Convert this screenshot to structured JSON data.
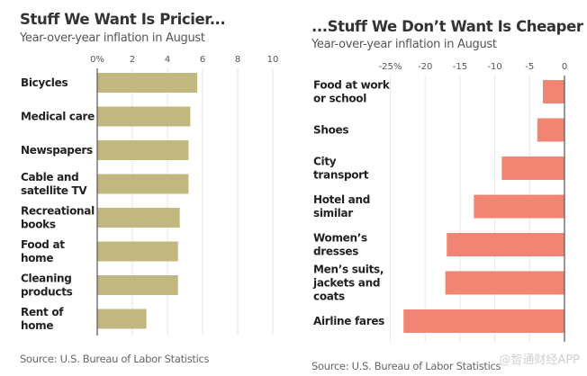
{
  "chart_data": [
    {
      "type": "bar",
      "orientation": "horizontal",
      "title": "Stuff We Want Is Pricier...",
      "subtitle": "Year-over-year inflation in August",
      "xlabel": "",
      "ylabel": "",
      "xlim": [
        0,
        10
      ],
      "ticks": [
        0,
        2,
        4,
        6,
        8,
        10
      ],
      "tick_labels": [
        "0%",
        "2",
        "4",
        "6",
        "8",
        "10"
      ],
      "grid": true,
      "color": "#c0b87f",
      "categories": [
        [
          "Bicycles"
        ],
        [
          "Medical care"
        ],
        [
          "Newspapers"
        ],
        [
          "Cable and",
          "satellite TV"
        ],
        [
          "Recreational",
          "books"
        ],
        [
          "Food at",
          "home"
        ],
        [
          "Cleaning",
          "products"
        ],
        [
          "Rent of",
          "home"
        ]
      ],
      "values": [
        5.7,
        5.3,
        5.2,
        5.2,
        4.7,
        4.6,
        4.6,
        2.8
      ],
      "source": "Source: U.S. Bureau of Labor Statistics"
    },
    {
      "type": "bar",
      "orientation": "horizontal",
      "title": "...Stuff We Don’t Want Is Cheaper",
      "subtitle": "Year-over-year inflation in August",
      "xlabel": "",
      "ylabel": "",
      "xlim": [
        -25,
        0
      ],
      "ticks": [
        -25,
        -20,
        -15,
        -10,
        -5,
        0
      ],
      "tick_labels": [
        "-25%",
        "-20",
        "-15",
        "-10",
        "-5",
        "0"
      ],
      "grid": true,
      "color": "#f28473",
      "categories": [
        [
          "Food at work",
          "or school"
        ],
        [
          "Shoes"
        ],
        [
          "City",
          "transport"
        ],
        [
          "Hotel and",
          "similar"
        ],
        [
          "Women’s",
          "dresses"
        ],
        [
          "Men’s suits,",
          "jackets and",
          "coats"
        ],
        [
          "Airline fares"
        ]
      ],
      "values": [
        -3.1,
        -3.9,
        -9.0,
        -13.0,
        -16.9,
        -17.1,
        -23.1
      ],
      "source": "Source: U.S. Bureau of Labor Statistics"
    }
  ],
  "watermark": "@智通财经APP"
}
